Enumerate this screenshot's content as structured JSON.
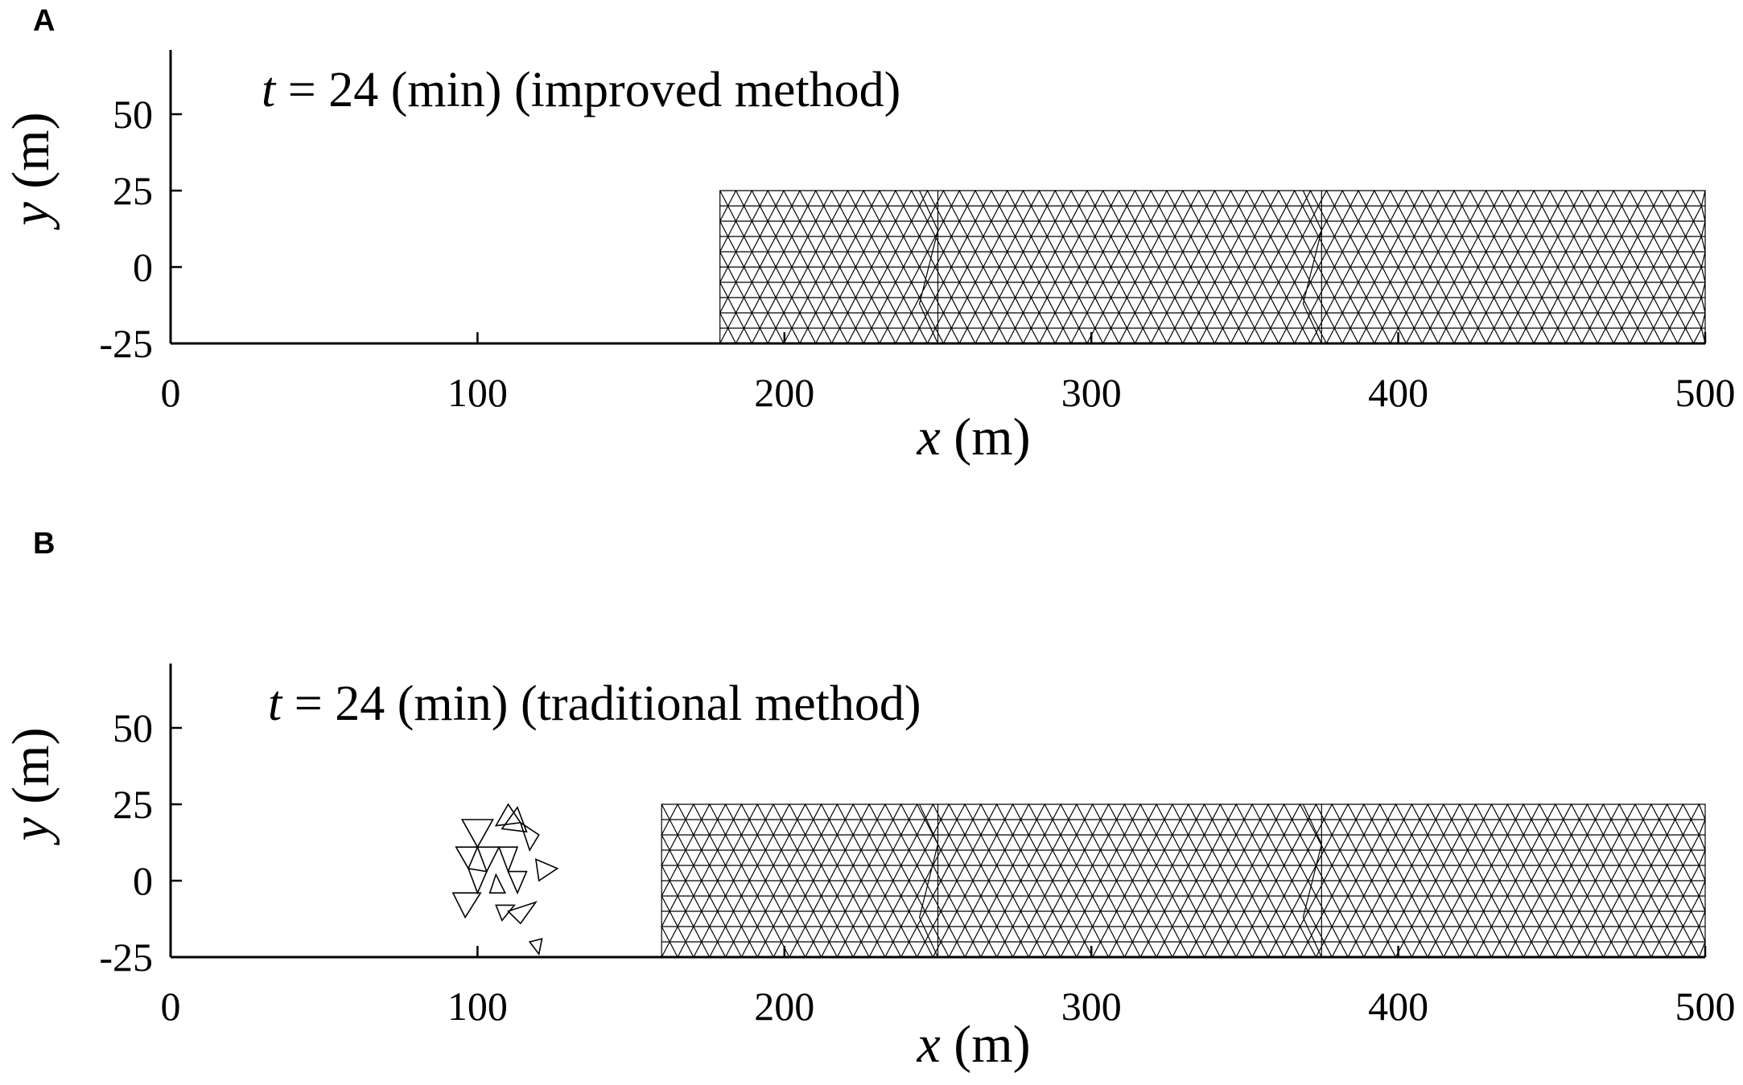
{
  "chart_data": [
    {
      "type": "mesh",
      "panel_label": "A",
      "annotation": {
        "var": "t",
        "text": " = 24 (min) (improved method)"
      },
      "xlabel": {
        "var": "x",
        "unit": " (m)"
      },
      "ylabel": {
        "var": "y",
        "unit": " (m)"
      },
      "xlim": [
        0,
        500
      ],
      "ylim": [
        -25,
        70
      ],
      "xticks": [
        0,
        100,
        200,
        300,
        400,
        500
      ],
      "yticks": [
        -25,
        0,
        25,
        50
      ],
      "xtick_labels": [
        "0",
        "100",
        "200",
        "300",
        "400",
        "500"
      ],
      "ytick_labels": [
        "-25",
        "0",
        "25",
        "50"
      ],
      "grid": false,
      "mesh_extent": {
        "x": [
          179,
          500
        ],
        "y": [
          -25,
          25
        ]
      },
      "mesh_seams_x": [
        250,
        375
      ],
      "fragments": []
    },
    {
      "type": "mesh",
      "panel_label": "B",
      "annotation": {
        "var": "t",
        "text": " = 24 (min) (traditional method)"
      },
      "xlabel": {
        "var": "x",
        "unit": " (m)"
      },
      "ylabel": {
        "var": "y",
        "unit": " (m)"
      },
      "xlim": [
        0,
        500
      ],
      "ylim": [
        -25,
        70
      ],
      "xticks": [
        0,
        100,
        200,
        300,
        400,
        500
      ],
      "yticks": [
        -25,
        0,
        25,
        50
      ],
      "xtick_labels": [
        "0",
        "100",
        "200",
        "300",
        "400",
        "500"
      ],
      "ytick_labels": [
        "-25",
        "0",
        "25",
        "50"
      ],
      "grid": false,
      "mesh_extent": {
        "x": [
          160,
          500
        ],
        "y": [
          -25,
          25
        ]
      },
      "mesh_seams_x": [
        250,
        375
      ],
      "fragments": [
        [
          [
            95,
            20
          ],
          [
            105,
            20
          ],
          [
            100,
            11
          ]
        ],
        [
          [
            93,
            11
          ],
          [
            100,
            11
          ],
          [
            97,
            4
          ]
        ],
        [
          [
            100,
            11
          ],
          [
            107,
            11
          ],
          [
            103,
            3
          ]
        ],
        [
          [
            92,
            -4
          ],
          [
            101,
            -4
          ],
          [
            96,
            -12
          ]
        ],
        [
          [
            97,
            4
          ],
          [
            103,
            3
          ],
          [
            100,
            -4
          ]
        ],
        [
          [
            108,
            17
          ],
          [
            113,
            24
          ],
          [
            116,
            16
          ]
        ],
        [
          [
            110,
            25
          ],
          [
            114,
            19
          ],
          [
            106,
            18
          ]
        ],
        [
          [
            114,
            19
          ],
          [
            120,
            15
          ],
          [
            117,
            10
          ]
        ],
        [
          [
            107,
            11
          ],
          [
            113,
            11
          ],
          [
            110,
            3
          ]
        ],
        [
          [
            110,
            3
          ],
          [
            116,
            3
          ],
          [
            113,
            -4
          ]
        ],
        [
          [
            104,
            -4
          ],
          [
            109,
            -4
          ],
          [
            106,
            2
          ]
        ],
        [
          [
            119,
            7
          ],
          [
            126,
            4
          ],
          [
            120,
            0
          ]
        ],
        [
          [
            110,
            -10
          ],
          [
            119,
            -7
          ],
          [
            114,
            -14
          ]
        ],
        [
          [
            108,
            -13
          ],
          [
            112,
            -8
          ],
          [
            106,
            -8
          ]
        ],
        [
          [
            117,
            -20
          ],
          [
            121,
            -19
          ],
          [
            120,
            -24
          ]
        ]
      ]
    }
  ]
}
